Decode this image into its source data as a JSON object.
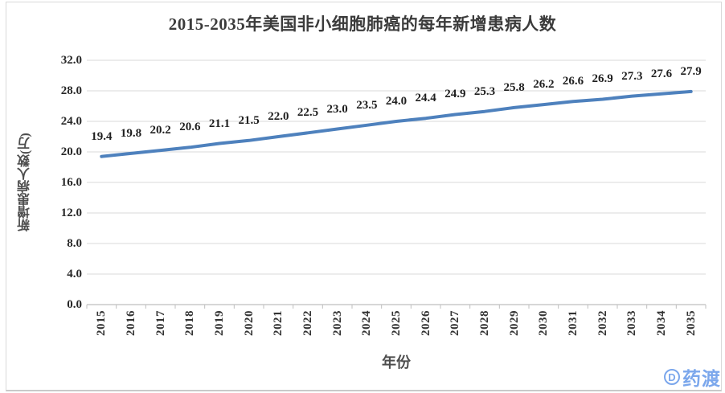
{
  "chart_data": {
    "type": "line",
    "title": "2015-2035年美国非小细胞肺癌的每年新增患病人数",
    "xlabel": "年份",
    "ylabel": "新增患病人数(万)",
    "x": [
      "2015",
      "2016",
      "2017",
      "2018",
      "2019",
      "2020",
      "2021",
      "2022",
      "2023",
      "2024",
      "2025",
      "2026",
      "2027",
      "2028",
      "2029",
      "2030",
      "2031",
      "2032",
      "2033",
      "2034",
      "2035"
    ],
    "series": [
      {
        "name": "新增患病人数(万)",
        "values": [
          19.4,
          19.8,
          20.2,
          20.6,
          21.1,
          21.5,
          22.0,
          22.5,
          23.0,
          23.5,
          24.0,
          24.4,
          24.9,
          25.3,
          25.8,
          26.2,
          26.6,
          26.9,
          27.3,
          27.6,
          27.9
        ],
        "value_labels": [
          "19.4",
          "19.8",
          "20.2",
          "20.6",
          "21.1",
          "21.5",
          "22.0",
          "22.5",
          "23.0",
          "23.5",
          "24.0",
          "24.4",
          "24.9",
          "25.3",
          "25.8",
          "26.2",
          "26.6",
          "26.9",
          "27.3",
          "27.6",
          "27.9"
        ]
      }
    ],
    "y_ticks": [
      "0.0",
      "4.0",
      "8.0",
      "12.0",
      "16.0",
      "20.0",
      "24.0",
      "28.0",
      "32.0"
    ],
    "ylim": [
      0,
      32
    ],
    "grid": true,
    "legend": "none",
    "line_color": "#4E81BD",
    "gridline_color": "#d9d9d9",
    "axis_color": "#bfbfbf"
  },
  "footer": {
    "logo_text": "药渡",
    "logo_letter": "D",
    "logo_color": "#7BA7EC"
  }
}
